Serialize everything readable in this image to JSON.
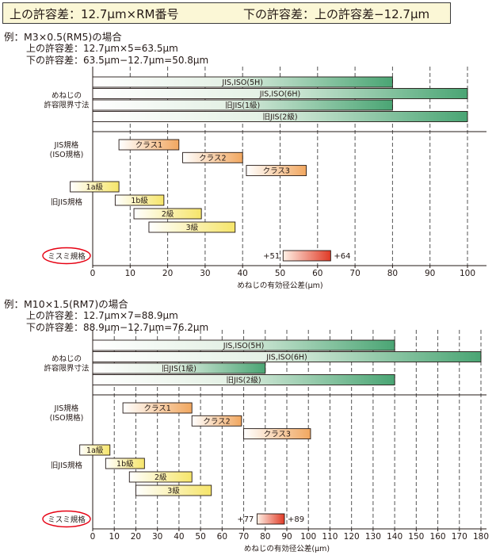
{
  "header": {
    "left": "上の許容差：12.7μm×RM番号",
    "right": "下の許容差：上の許容差−12.7μm"
  },
  "colors": {
    "accent_red": "#e60012",
    "green_bar": "#4aa574",
    "yellow_bar": "#f6e56a",
    "orange_bar": "#f1a760",
    "misumi_bar": "#e03a26"
  },
  "examples": [
    {
      "title": "例：M3×0.5(RM5)の場合",
      "lines": [
        "上の許容差：12.7μm×5=63.5μm",
        "下の許容差：63.5μm−12.7μm=50.8μm"
      ]
    },
    {
      "title": "例：M10×1.5(RM7)の場合",
      "lines": [
        "上の許容差：12.7μm×7=88.9μm",
        "下の許容差：88.9μm−12.7μm=76.2μm"
      ]
    }
  ],
  "chart_data": [
    {
      "type": "bar",
      "orientation": "horizontal-range",
      "xlabel": "めねじの有効径公差(μm)",
      "xlim": [
        0,
        100
      ],
      "xticks": [
        0,
        10,
        20,
        30,
        40,
        50,
        60,
        70,
        80,
        90,
        100
      ],
      "grid": "dashed vertical",
      "groups": [
        {
          "label": "めねじの\n許容限界寸法",
          "kind": "green",
          "bars": [
            {
              "label": "JIS,ISO(5H)",
              "start": 0,
              "end": 80
            },
            {
              "label": "JIS,ISO(6H)",
              "start": 0,
              "end": 100
            },
            {
              "label": "旧JIS(1級)",
              "start": 0,
              "end": 80
            },
            {
              "label": "旧JIS(2級)",
              "start": 0,
              "end": 100
            }
          ]
        },
        {
          "label": "JIS規格\n(ISO規格)",
          "kind": "orange",
          "bars": [
            {
              "label": "クラス1",
              "start": 7,
              "end": 23
            },
            {
              "label": "クラス2",
              "start": 24,
              "end": 40
            },
            {
              "label": "クラス3",
              "start": 41,
              "end": 57
            }
          ]
        },
        {
          "label": "旧JIS規格",
          "kind": "yellow",
          "bars": [
            {
              "label": "1a級",
              "start": -6,
              "end": 7
            },
            {
              "label": "1b級",
              "start": 6,
              "end": 19
            },
            {
              "label": "2級",
              "start": 11,
              "end": 29
            },
            {
              "label": "3級",
              "start": 15,
              "end": 38
            }
          ]
        },
        {
          "label": "ミスミ規格",
          "kind": "misumi",
          "bars": [
            {
              "label": "",
              "start": 50.8,
              "end": 63.5,
              "left_label": "+51",
              "right_label": "+64"
            }
          ]
        }
      ]
    },
    {
      "type": "bar",
      "orientation": "horizontal-range",
      "xlabel": "めねじの有効径公差(μm)",
      "xlim": [
        0,
        180
      ],
      "xticks": [
        0,
        10,
        20,
        30,
        40,
        50,
        60,
        70,
        80,
        90,
        100,
        110,
        120,
        130,
        140,
        150,
        160,
        170,
        180
      ],
      "grid": "dashed vertical",
      "groups": [
        {
          "label": "めねじの\n許容限界寸法",
          "kind": "green",
          "bars": [
            {
              "label": "JIS,ISO(5H)",
              "start": 0,
              "end": 140
            },
            {
              "label": "JIS,ISO(6H)",
              "start": 0,
              "end": 180
            },
            {
              "label": "旧JIS(1級)",
              "start": 0,
              "end": 80
            },
            {
              "label": "旧JIS(2級)",
              "start": 0,
              "end": 140
            }
          ]
        },
        {
          "label": "JIS規格\n(ISO規格)",
          "kind": "orange",
          "bars": [
            {
              "label": "クラス1",
              "start": 14,
              "end": 46
            },
            {
              "label": "クラス2",
              "start": 46,
              "end": 69
            },
            {
              "label": "クラス3",
              "start": 70,
              "end": 101
            }
          ]
        },
        {
          "label": "旧JIS規格",
          "kind": "yellow",
          "bars": [
            {
              "label": "1a級",
              "start": -6,
              "end": 8
            },
            {
              "label": "1b級",
              "start": 6,
              "end": 24
            },
            {
              "label": "2級",
              "start": 17,
              "end": 46
            },
            {
              "label": "3級",
              "start": 20,
              "end": 55
            }
          ]
        },
        {
          "label": "ミスミ規格",
          "kind": "misumi",
          "bars": [
            {
              "label": "",
              "start": 76.2,
              "end": 88.9,
              "left_label": "+77",
              "right_label": "+89"
            }
          ]
        }
      ]
    }
  ]
}
